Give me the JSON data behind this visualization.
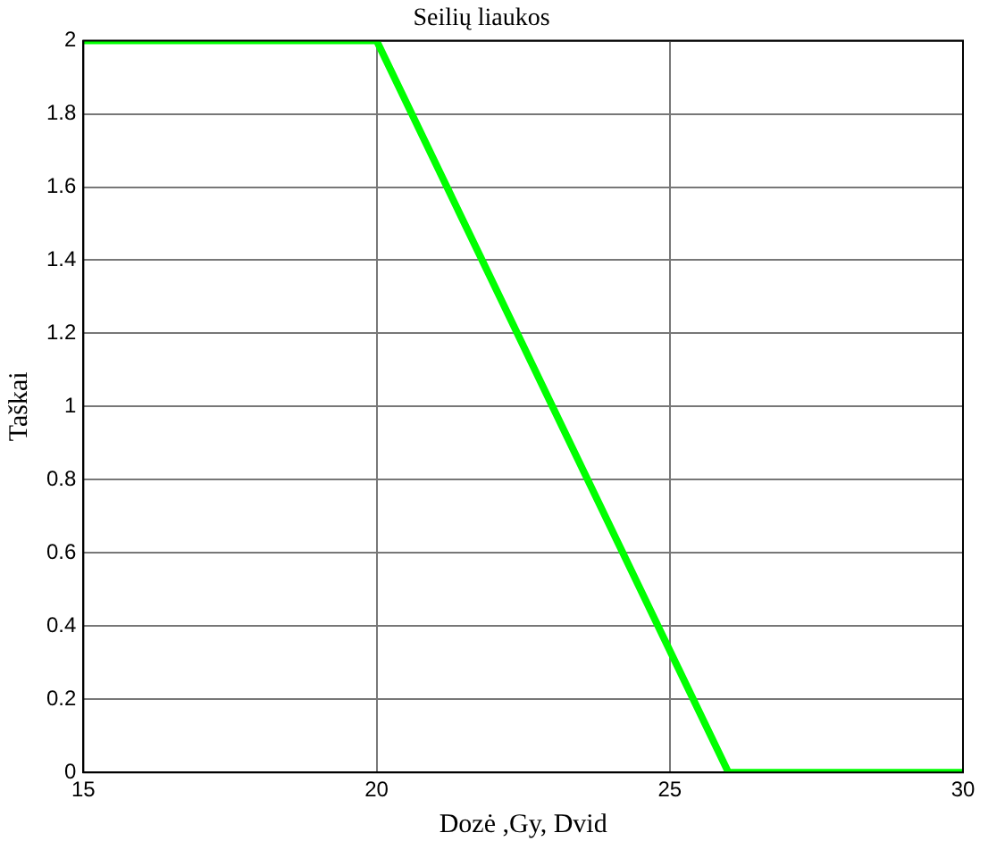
{
  "chart_data": {
    "type": "line",
    "title": "Seilių liaukos",
    "xlabel": "Dozė ,Gy, Dvid",
    "ylabel": "Taškai",
    "x": [
      15,
      20,
      26,
      30
    ],
    "series": [
      {
        "color": "#00ff00",
        "values": [
          2,
          2,
          0,
          0
        ]
      }
    ],
    "xlim": [
      15,
      30
    ],
    "xticks": [
      15,
      20,
      25,
      30
    ],
    "ylim": [
      0,
      2
    ],
    "yticks": [
      0,
      0.2,
      0.4,
      0.6,
      0.8,
      1,
      1.2,
      1.4,
      1.6,
      1.8,
      2
    ],
    "grid": true,
    "legend": false
  }
}
